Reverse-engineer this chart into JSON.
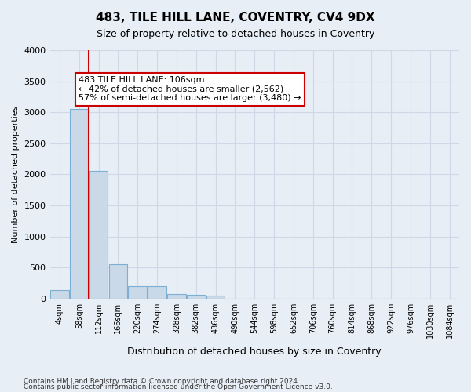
{
  "title1": "483, TILE HILL LANE, COVENTRY, CV4 9DX",
  "title2": "Size of property relative to detached houses in Coventry",
  "xlabel": "Distribution of detached houses by size in Coventry",
  "ylabel": "Number of detached properties",
  "footer1": "Contains HM Land Registry data © Crown copyright and database right 2024.",
  "footer2": "Contains public sector information licensed under the Open Government Licence v3.0.",
  "bin_labels": [
    "4sqm",
    "58sqm",
    "112sqm",
    "166sqm",
    "220sqm",
    "274sqm",
    "328sqm",
    "382sqm",
    "436sqm",
    "490sqm",
    "544sqm",
    "598sqm",
    "652sqm",
    "706sqm",
    "760sqm",
    "814sqm",
    "868sqm",
    "922sqm",
    "976sqm",
    "1030sqm",
    "1084sqm"
  ],
  "bar_values": [
    130,
    3050,
    2050,
    550,
    200,
    200,
    75,
    55,
    50,
    0,
    0,
    0,
    0,
    0,
    0,
    0,
    0,
    0,
    0,
    0,
    0
  ],
  "bar_color": "#c9d9e8",
  "bar_edge_color": "#7bafd4",
  "grid_color": "#d0d8e8",
  "background_color": "#e8eef5",
  "vline_x": 1.5,
  "vline_color": "#cc0000",
  "annotation_text": "483 TILE HILL LANE: 106sqm\n← 42% of detached houses are smaller (2,562)\n57% of semi-detached houses are larger (3,480) →",
  "annotation_box_color": "#ffffff",
  "annotation_box_edge_color": "#cc0000",
  "ylim": [
    0,
    4000
  ],
  "yticks": [
    0,
    500,
    1000,
    1500,
    2000,
    2500,
    3000,
    3500,
    4000
  ]
}
